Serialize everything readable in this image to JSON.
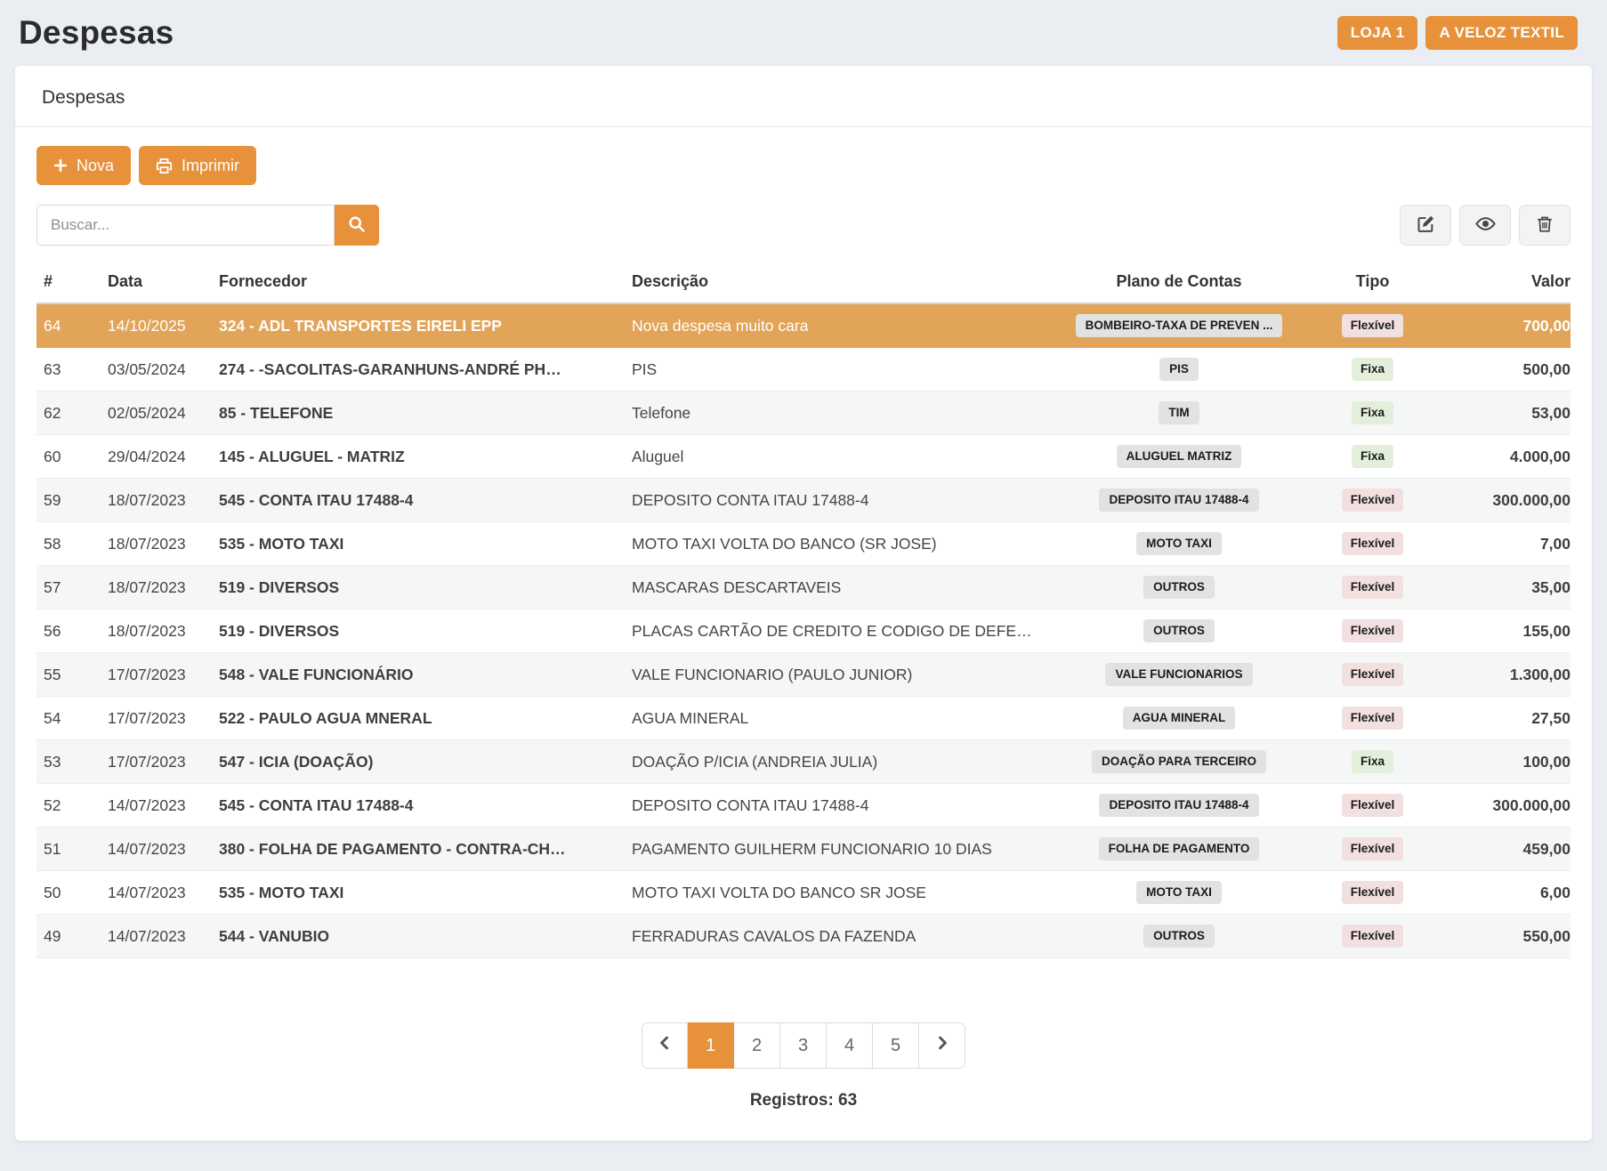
{
  "page": {
    "title": "Despesas"
  },
  "header": {
    "buttons": [
      {
        "label": "LOJA 1"
      },
      {
        "label": "A VELOZ TEXTIL"
      }
    ]
  },
  "card": {
    "title": "Despesas"
  },
  "toolbar": {
    "new_label": "Nova",
    "print_label": "Imprimir"
  },
  "search": {
    "placeholder": "Buscar..."
  },
  "icons": {
    "new": "plus-icon",
    "print": "printer-icon",
    "search": "magnifier-icon",
    "edit": "pencil-square-icon",
    "view": "eye-icon",
    "delete": "trash-icon",
    "prev": "chevron-left-icon",
    "next": "chevron-right-icon"
  },
  "colors": {
    "accent_orange": "#e8913b",
    "row_highlight": "#e2a458",
    "badge_gray_bg": "#e2e2e2",
    "type_fixed_bg": "#e3efdb",
    "type_flexible_bg": "#f2dfdf",
    "page_background": "#eaedf1"
  },
  "table": {
    "columns": [
      "#",
      "Data",
      "Fornecedor",
      "Descrição",
      "Plano de Contas",
      "Tipo",
      "Valor"
    ],
    "rows": [
      {
        "id": "64",
        "date": "14/10/2025",
        "supplier": "324 - ADL TRANSPORTES EIRELI EPP",
        "description": "Nova despesa muito cara",
        "plan": "BOMBEIRO-TAXA DE PREVEN ...",
        "type": "Flexível",
        "value": "700,00",
        "highlighted": true
      },
      {
        "id": "63",
        "date": "03/05/2024",
        "supplier": "274 - -SACOLITAS-GARANHUNS-ANDRÉ PH…",
        "description": "PIS",
        "plan": "PIS",
        "type": "Fixa",
        "value": "500,00",
        "highlighted": false
      },
      {
        "id": "62",
        "date": "02/05/2024",
        "supplier": "85 - TELEFONE",
        "description": "Telefone",
        "plan": "TIM",
        "type": "Fixa",
        "value": "53,00",
        "highlighted": false
      },
      {
        "id": "60",
        "date": "29/04/2024",
        "supplier": "145 - ALUGUEL - MATRIZ",
        "description": "Aluguel",
        "plan": "ALUGUEL MATRIZ",
        "type": "Fixa",
        "value": "4.000,00",
        "highlighted": false
      },
      {
        "id": "59",
        "date": "18/07/2023",
        "supplier": "545 - CONTA ITAU 17488-4",
        "description": "DEPOSITO CONTA ITAU 17488-4",
        "plan": "DEPOSITO ITAU 17488-4",
        "type": "Flexível",
        "value": "300.000,00",
        "highlighted": false
      },
      {
        "id": "58",
        "date": "18/07/2023",
        "supplier": "535 - MOTO TAXI",
        "description": "MOTO TAXI VOLTA DO BANCO (SR JOSE)",
        "plan": "MOTO TAXI",
        "type": "Flexível",
        "value": "7,00",
        "highlighted": false
      },
      {
        "id": "57",
        "date": "18/07/2023",
        "supplier": "519 - DIVERSOS",
        "description": "MASCARAS DESCARTAVEIS",
        "plan": "OUTROS",
        "type": "Flexível",
        "value": "35,00",
        "highlighted": false
      },
      {
        "id": "56",
        "date": "18/07/2023",
        "supplier": "519 - DIVERSOS",
        "description": "PLACAS CARTÃO DE CREDITO E CODIGO DE DEFE…",
        "plan": "OUTROS",
        "type": "Flexível",
        "value": "155,00",
        "highlighted": false
      },
      {
        "id": "55",
        "date": "17/07/2023",
        "supplier": "548 - VALE FUNCIONÁRIO",
        "description": "VALE FUNCIONARIO (PAULO JUNIOR)",
        "plan": "VALE FUNCIONARIOS",
        "type": "Flexível",
        "value": "1.300,00",
        "highlighted": false
      },
      {
        "id": "54",
        "date": "17/07/2023",
        "supplier": "522 - PAULO AGUA MNERAL",
        "description": "AGUA MINERAL",
        "plan": "AGUA MINERAL",
        "type": "Flexível",
        "value": "27,50",
        "highlighted": false
      },
      {
        "id": "53",
        "date": "17/07/2023",
        "supplier": "547 - ICIA (DOAÇÃO)",
        "description": "DOAÇÃO P/ICIA (ANDREIA JULIA)",
        "plan": "DOAÇÃO PARA TERCEIRO",
        "type": "Fixa",
        "value": "100,00",
        "highlighted": false
      },
      {
        "id": "52",
        "date": "14/07/2023",
        "supplier": "545 - CONTA ITAU 17488-4",
        "description": "DEPOSITO CONTA ITAU 17488-4",
        "plan": "DEPOSITO ITAU 17488-4",
        "type": "Flexível",
        "value": "300.000,00",
        "highlighted": false
      },
      {
        "id": "51",
        "date": "14/07/2023",
        "supplier": "380 - FOLHA DE PAGAMENTO - CONTRA-CH…",
        "description": "PAGAMENTO GUILHERM FUNCIONARIO 10 DIAS",
        "plan": "FOLHA DE PAGAMENTO",
        "type": "Flexível",
        "value": "459,00",
        "highlighted": false
      },
      {
        "id": "50",
        "date": "14/07/2023",
        "supplier": "535 - MOTO TAXI",
        "description": "MOTO TAXI VOLTA DO BANCO SR JOSE",
        "plan": "MOTO TAXI",
        "type": "Flexível",
        "value": "6,00",
        "highlighted": false
      },
      {
        "id": "49",
        "date": "14/07/2023",
        "supplier": "544 - VANUBIO",
        "description": "FERRADURAS CAVALOS DA FAZENDA",
        "plan": "OUTROS",
        "type": "Flexível",
        "value": "550,00",
        "highlighted": false
      }
    ]
  },
  "pagination": {
    "pages": [
      "1",
      "2",
      "3",
      "4",
      "5"
    ],
    "active": "1"
  },
  "footer": {
    "records_label": "Registros: 63"
  }
}
